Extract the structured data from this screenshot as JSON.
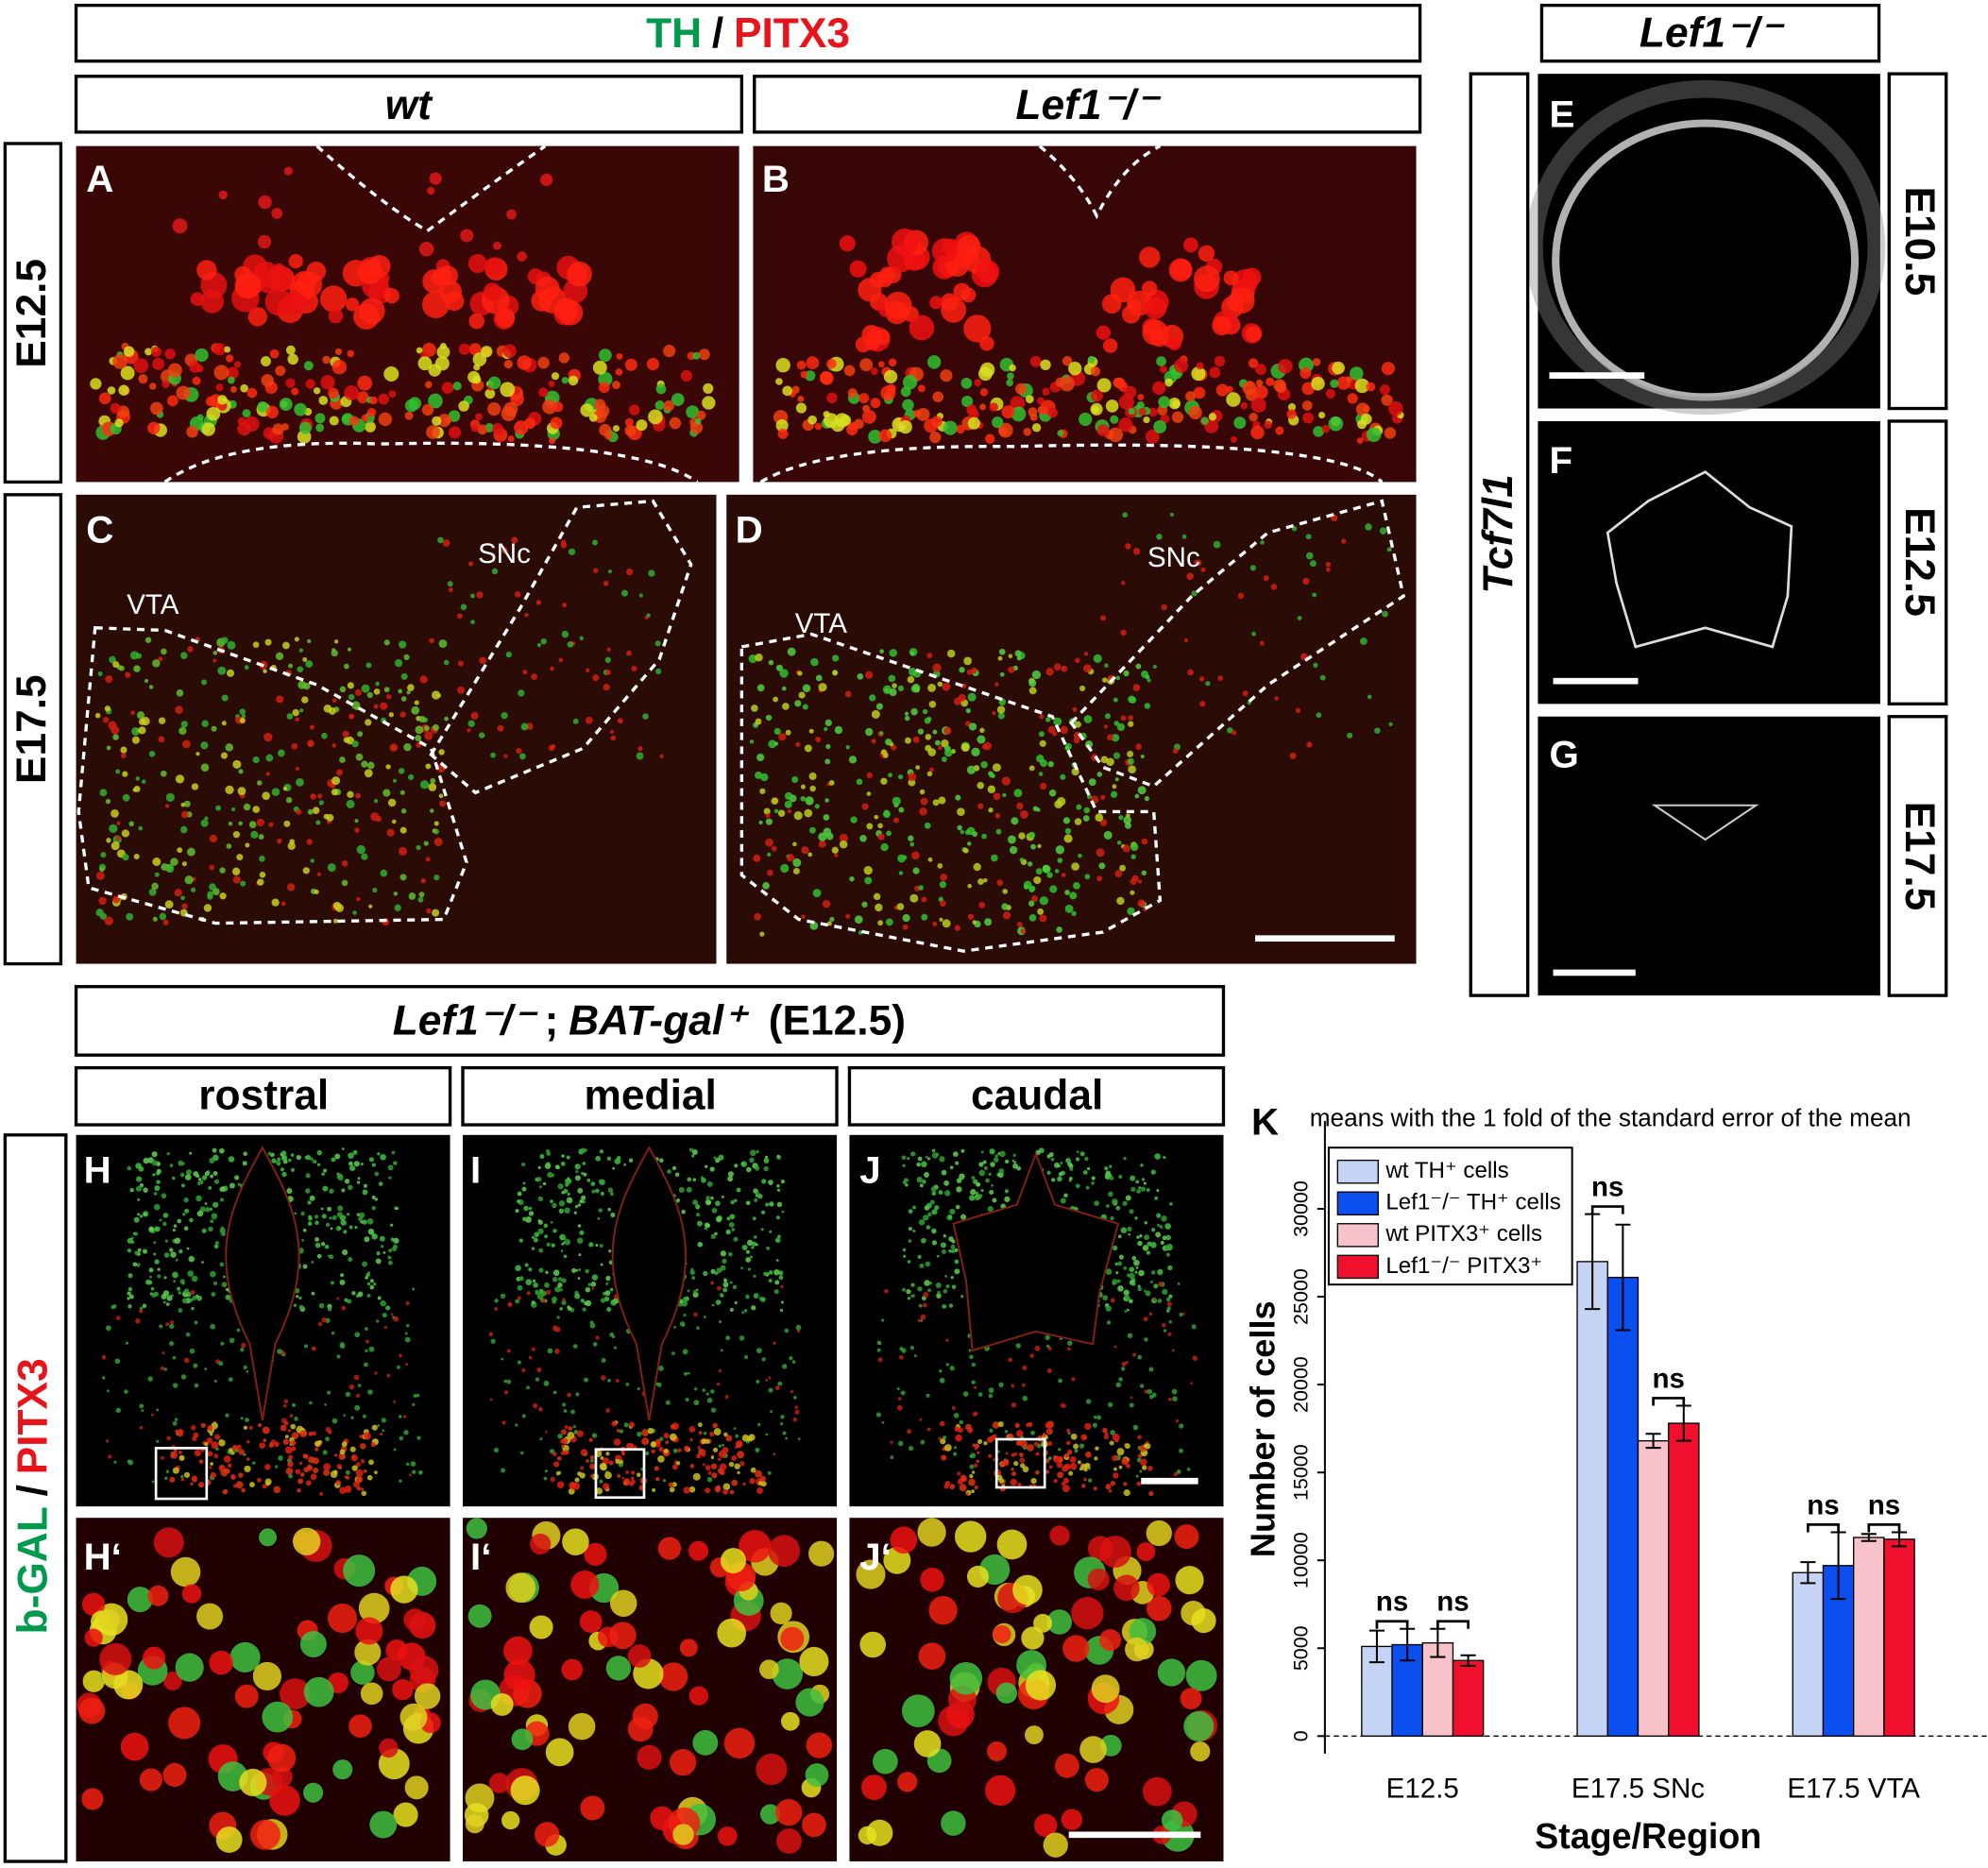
{
  "figure": {
    "top_header": {
      "marker1": "TH",
      "separator": "/",
      "marker2": "PITX3"
    },
    "genotypes": [
      "wt",
      "Lef1⁻/⁻"
    ],
    "stages": [
      "E12.5",
      "E17.5"
    ],
    "panels_top": [
      "A",
      "B",
      "C",
      "D"
    ],
    "regions": [
      "VTA",
      "SNc",
      "VTA",
      "SNc"
    ],
    "right_header": "Lef1⁻/⁻",
    "right_marker": "Tcf7l1",
    "right_stages": [
      "E10.5",
      "E12.5",
      "E17.5"
    ],
    "panels_right": [
      "E",
      "F",
      "G"
    ],
    "bottom_header": [
      "Lef1⁻/⁻",
      ";",
      "BAT-gal⁺",
      "(E12.5)"
    ],
    "levels": [
      "rostral",
      "medial",
      "caudal"
    ],
    "bottom_marker": {
      "marker1": "b-GAL",
      "separator": "/",
      "marker2": "PITX3"
    },
    "panels_bottom": [
      "H",
      "I",
      "J",
      "H‘",
      "I‘",
      "J‘"
    ]
  },
  "chart_data": {
    "type": "bar",
    "panel_label": "K",
    "title": "means with the 1 fold of the standard error of the mean",
    "x_label": "Stage/Region",
    "y_label": "Number of cells",
    "categories": [
      "E12.5",
      "E17.5 SNc",
      "E17.5 VTA"
    ],
    "series": [
      {
        "name": "wt TH⁺ cells",
        "color": "#c5d4f5",
        "values": [
          5100,
          27000,
          9300
        ],
        "errors": [
          900,
          2700,
          600
        ]
      },
      {
        "name": "Lef1⁻/⁻ TH⁺ cells",
        "color": "#0b4ff0",
        "values": [
          5200,
          26100,
          9700
        ],
        "errors": [
          900,
          3000,
          1900
        ]
      },
      {
        "name": "wt PITX3⁺ cells",
        "color": "#f8c2ca",
        "values": [
          5300,
          16800,
          11300
        ],
        "errors": [
          800,
          400,
          200
        ]
      },
      {
        "name": "Lef1⁻/⁻ PITX3⁺",
        "color": "#f0102e",
        "values": [
          4300,
          17800,
          11200
        ],
        "errors": [
          300,
          1000,
          400
        ]
      }
    ],
    "ylim": [
      -1000,
      35000
    ],
    "yticks": [
      0,
      5000,
      10000,
      15000,
      20000,
      25000,
      30000
    ],
    "annotations": [
      "ns",
      "ns",
      "ns",
      "ns",
      "ns",
      "ns"
    ]
  }
}
